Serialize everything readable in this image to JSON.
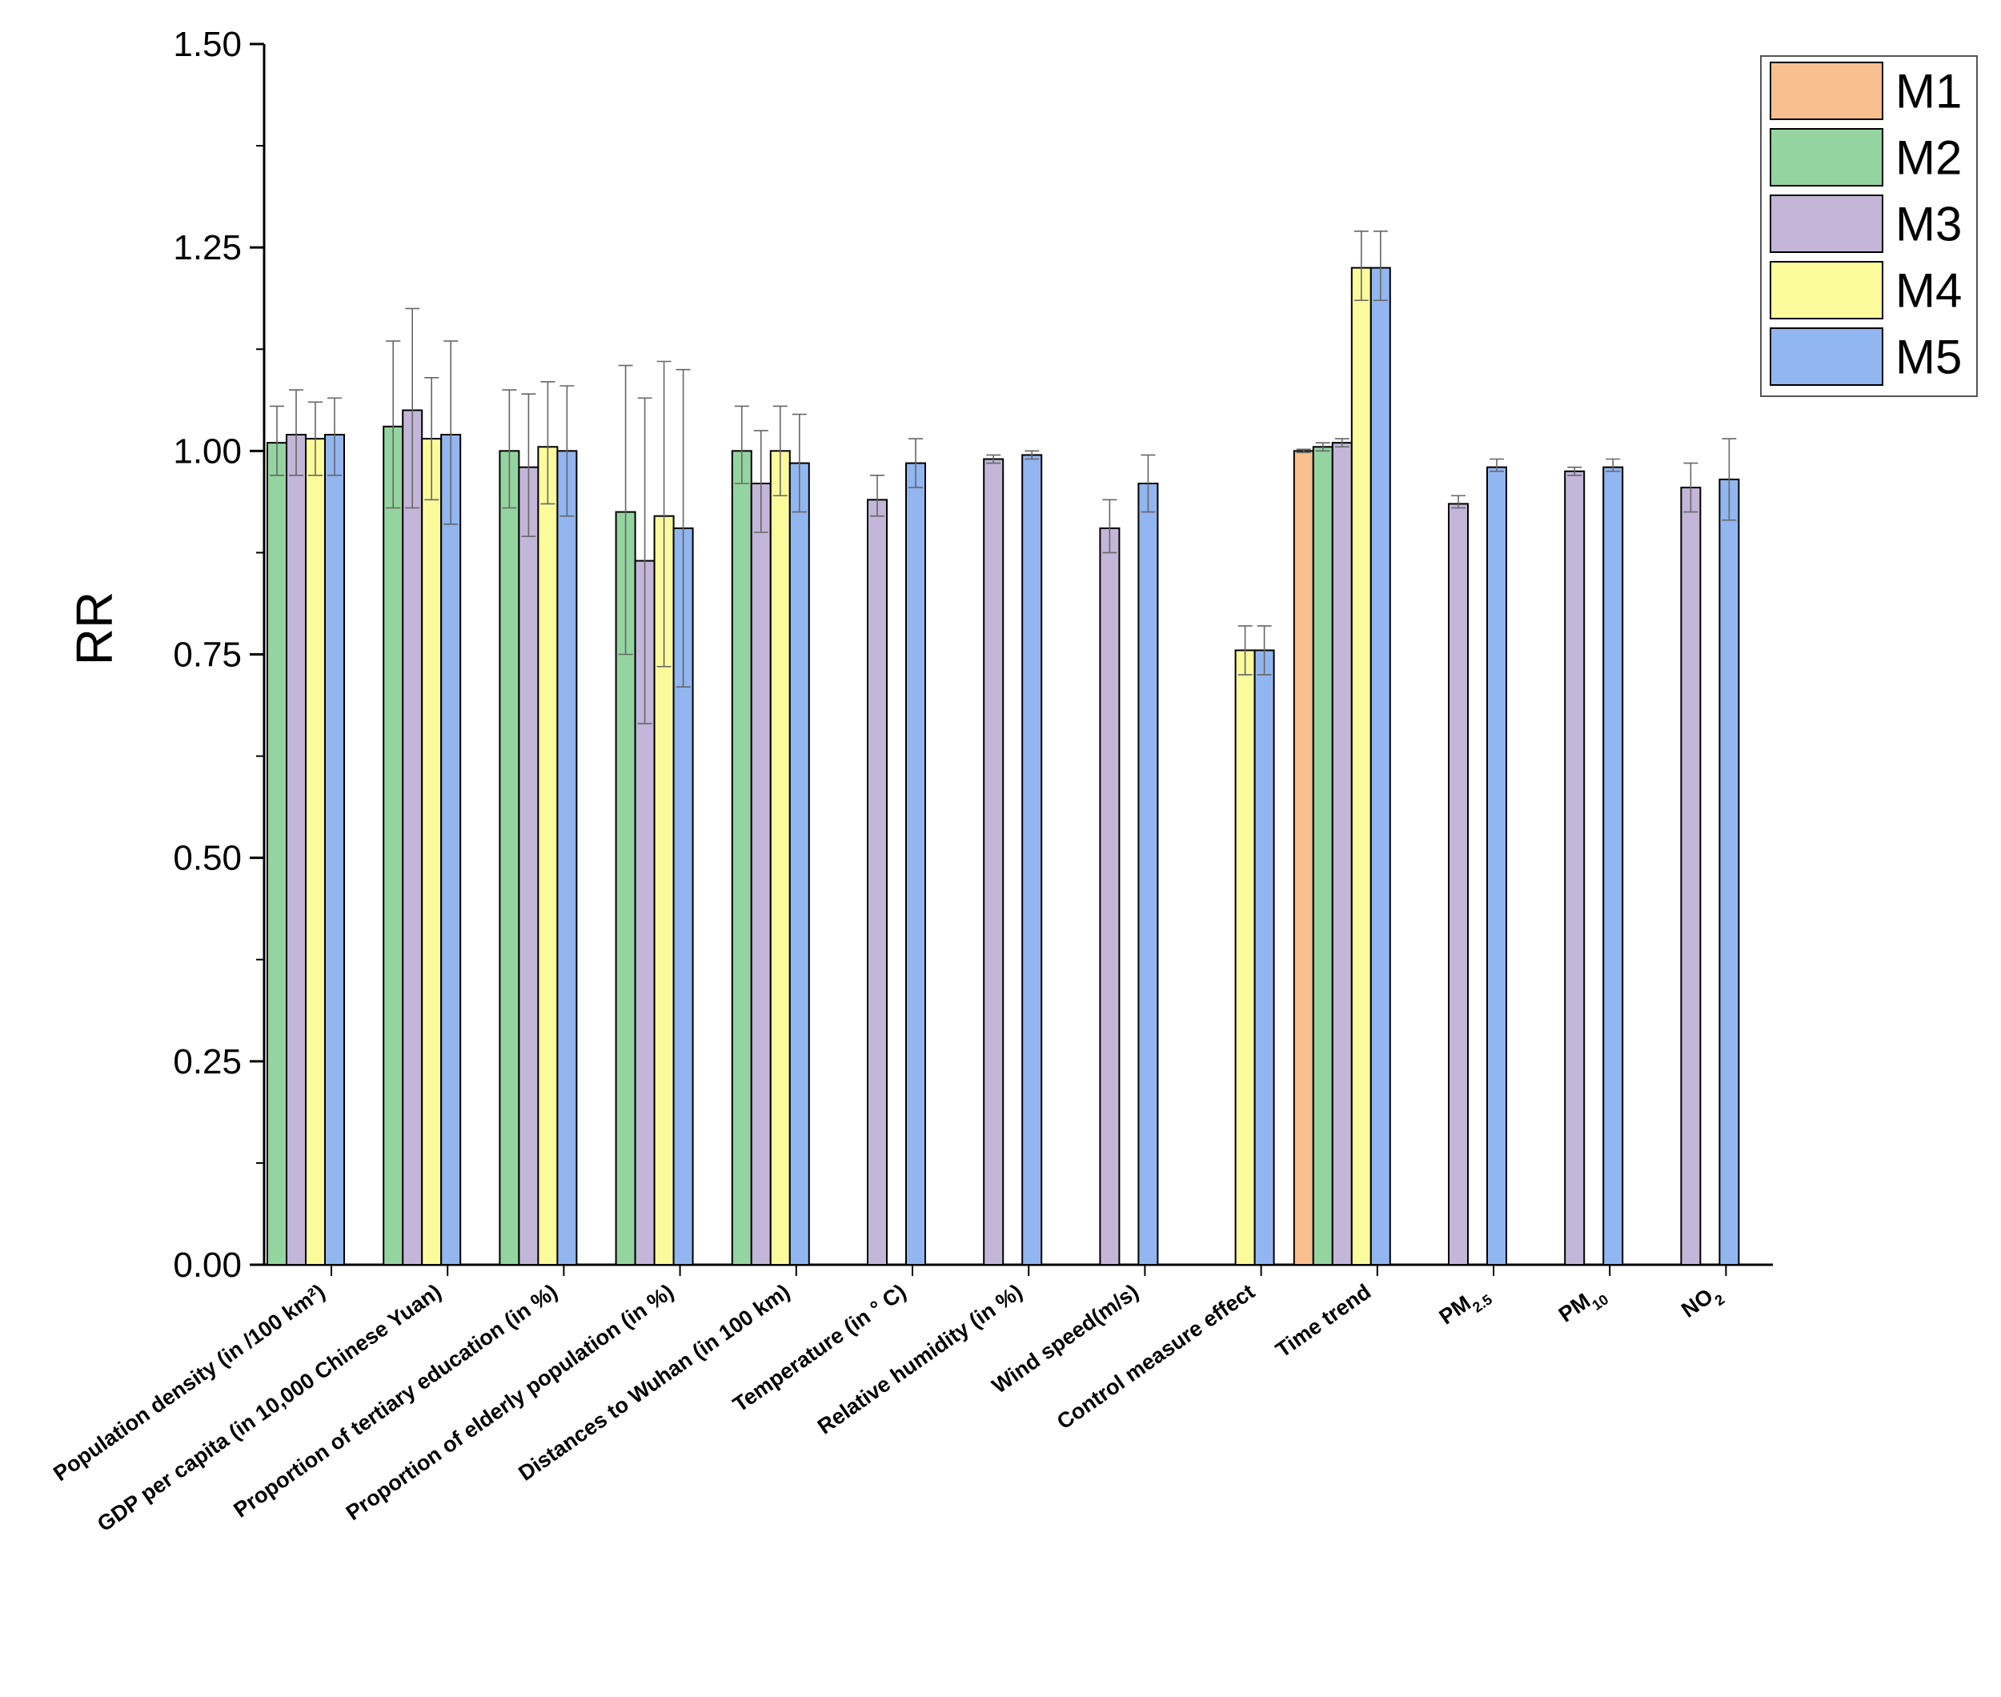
{
  "chart_data": {
    "type": "bar",
    "title": "",
    "xlabel": "",
    "ylabel": "RR",
    "ylim": [
      0,
      1.5
    ],
    "yticks": [
      "0.00",
      "0.25",
      "0.50",
      "0.75",
      "1.00",
      "1.25",
      "1.50"
    ],
    "legend_position": "top-right",
    "categories": [
      "Population density (in /100 km²)",
      "GDP per capita (in 10,000 Chinese Yuan)",
      "Proportion of tertiary education (in %)",
      "Proportion of elderly population (in %)",
      "Distances to Wuhan (in 100 km)",
      "Temperature (in ° C)",
      "Relative humidity (in %)",
      "Wind speed(m/s)",
      "Control measure effect",
      "Time trend",
      "PM2.5",
      "PM10",
      "NO2"
    ],
    "series": [
      {
        "name": "M1",
        "color": "#f9c08f",
        "values": [
          null,
          null,
          null,
          null,
          null,
          null,
          null,
          null,
          null,
          1.0,
          null,
          null,
          null
        ],
        "lower": [
          null,
          null,
          null,
          null,
          null,
          null,
          null,
          null,
          null,
          0.998,
          null,
          null,
          null
        ],
        "upper": [
          null,
          null,
          null,
          null,
          null,
          null,
          null,
          null,
          null,
          1.002,
          null,
          null,
          null
        ]
      },
      {
        "name": "M2",
        "color": "#94d4a0",
        "values": [
          1.01,
          1.03,
          1.0,
          0.925,
          1.0,
          null,
          null,
          null,
          null,
          1.005,
          null,
          null,
          null
        ],
        "lower": [
          0.97,
          0.93,
          0.93,
          0.75,
          0.96,
          null,
          null,
          null,
          null,
          1.0,
          null,
          null,
          null
        ],
        "upper": [
          1.055,
          1.135,
          1.075,
          1.105,
          1.055,
          null,
          null,
          null,
          null,
          1.01,
          null,
          null,
          null
        ]
      },
      {
        "name": "M3",
        "color": "#c3b6d8",
        "values": [
          1.02,
          1.05,
          0.98,
          0.865,
          0.96,
          0.94,
          0.99,
          0.905,
          null,
          1.01,
          0.935,
          0.975,
          0.955
        ],
        "lower": [
          0.97,
          0.93,
          0.895,
          0.665,
          0.9,
          0.92,
          0.985,
          0.875,
          null,
          1.005,
          0.93,
          0.97,
          0.925
        ],
        "upper": [
          1.075,
          1.175,
          1.07,
          1.065,
          1.025,
          0.97,
          0.995,
          0.94,
          null,
          1.015,
          0.945,
          0.98,
          0.985
        ]
      },
      {
        "name": "M4",
        "color": "#fbfb9c",
        "values": [
          1.015,
          1.015,
          1.005,
          0.92,
          1.0,
          null,
          null,
          null,
          0.755,
          1.225,
          null,
          null,
          null
        ],
        "lower": [
          0.97,
          0.94,
          0.935,
          0.735,
          0.945,
          null,
          null,
          null,
          0.725,
          1.185,
          null,
          null,
          null
        ],
        "upper": [
          1.06,
          1.09,
          1.085,
          1.11,
          1.055,
          null,
          null,
          null,
          0.785,
          1.27,
          null,
          null,
          null
        ]
      },
      {
        "name": "M5",
        "color": "#92b6ef",
        "values": [
          1.02,
          1.02,
          1.0,
          0.905,
          0.985,
          0.985,
          0.995,
          0.96,
          0.755,
          1.225,
          0.98,
          0.98,
          0.965
        ],
        "lower": [
          0.97,
          0.91,
          0.92,
          0.71,
          0.925,
          0.955,
          0.99,
          0.925,
          0.725,
          1.185,
          0.975,
          0.975,
          0.915
        ],
        "upper": [
          1.065,
          1.135,
          1.08,
          1.1,
          1.045,
          1.015,
          1.0,
          0.995,
          0.785,
          1.27,
          0.99,
          0.99,
          1.015
        ]
      }
    ]
  }
}
